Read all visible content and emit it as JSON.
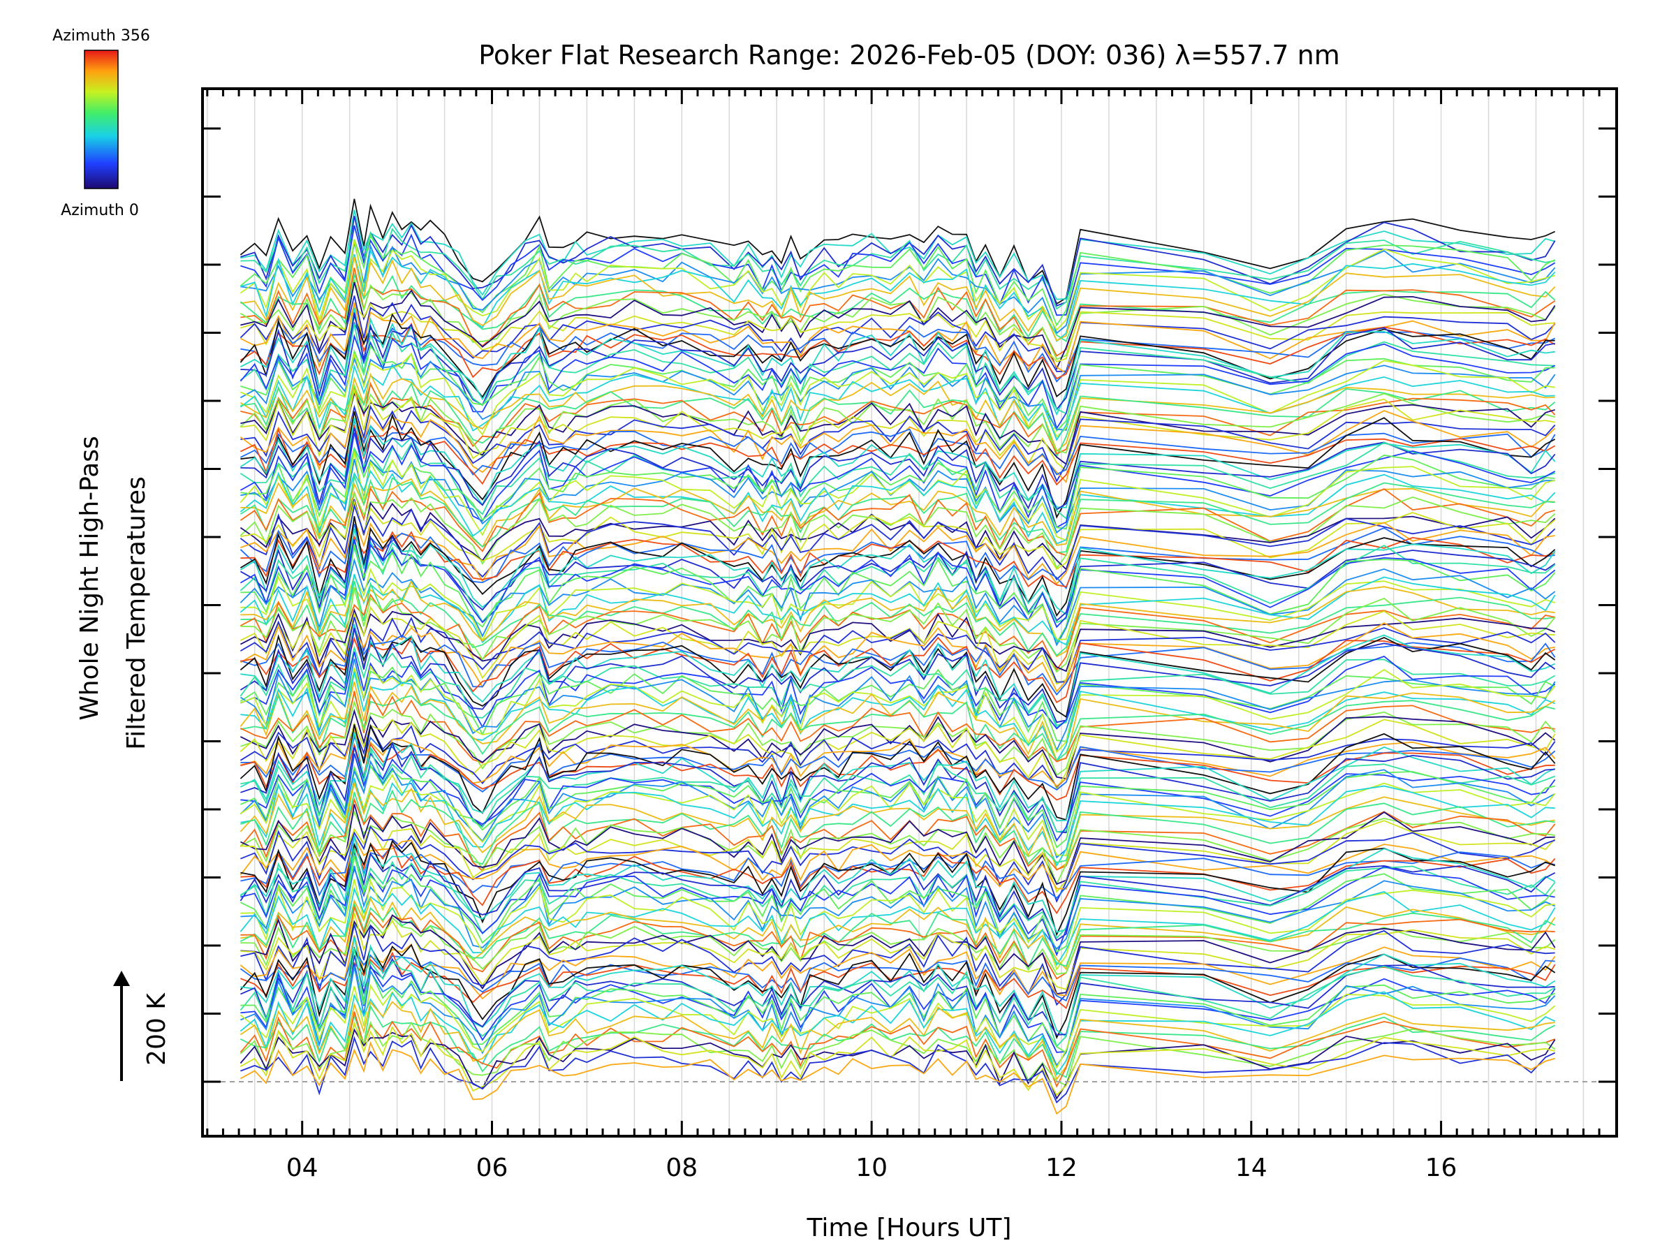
{
  "chart_data": {
    "type": "line",
    "title": "Poker Flat Research Range: 2026-Feb-05 (DOY: 036) λ=557.7 nm",
    "xlabel": "Time [Hours UT]",
    "ylabel_line1": "Whole Night High-Pass",
    "ylabel_line2": "Filtered Temperatures",
    "scale_bar_label": "200 K",
    "colorbar": {
      "top_label": "Azimuth 356",
      "bottom_label": "Azimuth 0",
      "colormap": "rainbow"
    },
    "xlim": [
      2.95,
      17.85
    ],
    "x_ticks": [
      {
        "value": 4,
        "label": "04"
      },
      {
        "value": 6,
        "label": "06"
      },
      {
        "value": 8,
        "label": "08"
      },
      {
        "value": 10,
        "label": "10"
      },
      {
        "value": 12,
        "label": "12"
      },
      {
        "value": 14,
        "label": "14"
      },
      {
        "value": 16,
        "label": "16"
      }
    ],
    "grid": true,
    "legend": "colorbar top-left",
    "time_samples": [
      3.35,
      3.5,
      3.62,
      3.75,
      3.9,
      4.05,
      4.18,
      4.3,
      4.45,
      4.55,
      4.65,
      4.72,
      4.85,
      4.95,
      5.05,
      5.15,
      5.25,
      5.35,
      5.5,
      5.65,
      5.8,
      5.9,
      6.05,
      6.2,
      6.35,
      6.5,
      6.6,
      6.75,
      6.88,
      7.0,
      7.25,
      7.5,
      7.8,
      8.0,
      8.3,
      8.55,
      8.7,
      8.85,
      8.95,
      9.05,
      9.15,
      9.25,
      9.35,
      9.5,
      9.65,
      9.8,
      10.0,
      10.2,
      10.4,
      10.55,
      10.7,
      10.85,
      11.0,
      11.1,
      11.2,
      11.35,
      11.5,
      11.65,
      11.8,
      11.95,
      12.05,
      12.2,
      13.5,
      14.2,
      14.6,
      15.0,
      15.4,
      15.7,
      16.2,
      16.7,
      16.95,
      17.1,
      17.2
    ],
    "pattern": [
      0.35,
      0.45,
      0.1,
      0.9,
      0.3,
      0.75,
      -0.1,
      0.55,
      0.2,
      1.25,
      0.5,
      1.1,
      0.7,
      1.05,
      0.85,
      1.0,
      0.65,
      0.8,
      0.55,
      0.3,
      -0.15,
      -0.3,
      0.05,
      0.35,
      0.6,
      0.85,
      0.3,
      0.45,
      0.55,
      0.6,
      0.7,
      0.75,
      0.65,
      0.7,
      0.55,
      0.3,
      0.55,
      0.2,
      0.45,
      0.15,
      0.5,
      0.1,
      0.4,
      0.55,
      0.45,
      0.6,
      0.75,
      0.55,
      0.8,
      0.45,
      0.85,
      0.6,
      0.75,
      0.2,
      0.5,
      -0.1,
      0.3,
      -0.2,
      0.15,
      -0.55,
      -0.4,
      0.7,
      0.5,
      0.1,
      0.3,
      0.8,
      1.0,
      0.85,
      0.75,
      0.6,
      0.45,
      0.6,
      0.65
    ],
    "series_count": 150,
    "series_groups": 8,
    "series_offset_units": 0.5,
    "group_offset_units": 2.0,
    "zero_line": true
  }
}
